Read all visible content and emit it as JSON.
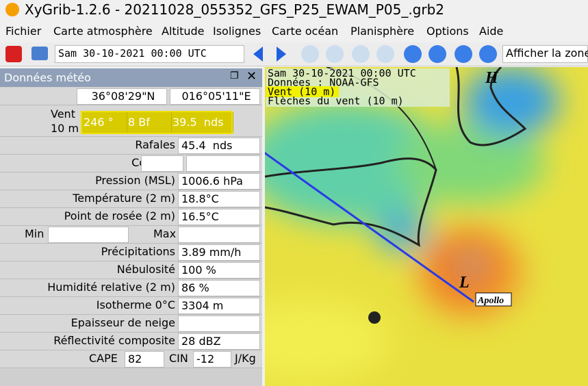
{
  "window": {
    "title": "XyGrib-1.2.6 - 20211028_055352_GFS_P25_EWAM_P05_.grb2"
  },
  "menu": [
    "Fichier",
    "Carte atmosphère",
    "Altitude",
    "Isolignes",
    "Carte océan",
    "Planisphère",
    "Options",
    "Aide"
  ],
  "toolbar": {
    "date": "Sam 30-10-2021 00:00 UTC",
    "zone": "Afficher la zone"
  },
  "panel": {
    "title": "Données météo",
    "lat": "36°08'29\"N",
    "lon": "016°05'11\"E",
    "wind": {
      "label": [
        "Vent",
        "10 m"
      ],
      "values": [
        "246 °",
        "8 Bf",
        "39.5  nds"
      ]
    },
    "rows": [
      {
        "label": "Rafales",
        "value": "45.4  nds"
      },
      {
        "label": "Courant"
      },
      {
        "label": "Pression (MSL)",
        "value": "1006.6 hPa"
      },
      {
        "label": "Température (2 m)",
        "value": "18.8°C"
      },
      {
        "label": "Point de rosée (2 m)",
        "value": "16.5°C"
      },
      {
        "min": "Min",
        "max": "Max"
      },
      {
        "label": "Précipitations",
        "value": "3.89 mm/h"
      },
      {
        "label": "Nébulosité",
        "value": "100 %"
      },
      {
        "label": "Humidité relative (2 m)",
        "value": "86 %"
      },
      {
        "label": "Isotherme 0°C",
        "value": "3304 m"
      },
      {
        "label": "Epaisseur de neige"
      },
      {
        "label": "Réflectivité composite",
        "value": "28 dBZ"
      }
    ],
    "cape": {
      "label": "CAPE",
      "value": "82",
      "cin_label": "CIN",
      "cin_value": "-12",
      "unit": "J/Kg"
    }
  },
  "map": {
    "overlay": [
      "Sam 30-10-2021 00:00 UTC",
      "Données : NOAA-GFS",
      "Vent (10 m)",
      "Flèches du vent (10 m)"
    ],
    "high": "H",
    "low": "L",
    "storm": "Apollo"
  }
}
